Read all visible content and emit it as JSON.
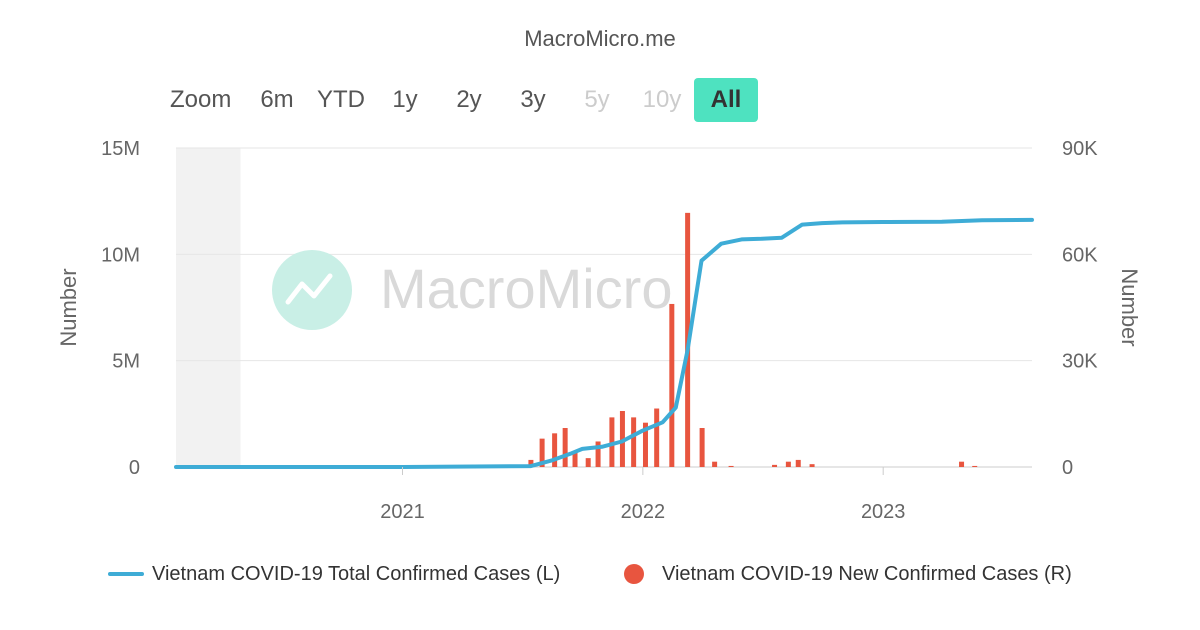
{
  "title": "MacroMicro.me",
  "watermark": "MacroMicro",
  "range_selector": {
    "zoom_label": "Zoom",
    "buttons": [
      {
        "label": "6m",
        "state": "enabled"
      },
      {
        "label": "YTD",
        "state": "enabled"
      },
      {
        "label": "1y",
        "state": "enabled"
      },
      {
        "label": "2y",
        "state": "enabled"
      },
      {
        "label": "3y",
        "state": "enabled"
      },
      {
        "label": "5y",
        "state": "disabled"
      },
      {
        "label": "10y",
        "state": "disabled"
      },
      {
        "label": "All",
        "state": "active"
      }
    ]
  },
  "colors": {
    "line": "#3eacd6",
    "bars": "#e8553f",
    "active_button": "#4ee2c0",
    "grid": "#e6e6e6",
    "shaded_band": "#f2f2f2",
    "watermark_logo": "#c9efe6"
  },
  "chart_data": {
    "type": "line+bar",
    "title": "",
    "left_axis": {
      "label": "Number",
      "range": [
        0,
        15000000
      ],
      "ticks": [
        0,
        5000000,
        10000000,
        15000000
      ],
      "tick_labels": [
        "0",
        "5M",
        "10M",
        "15M"
      ]
    },
    "right_axis": {
      "label": "Number",
      "range": [
        0,
        90000
      ],
      "ticks": [
        0,
        30000,
        60000,
        90000
      ],
      "tick_labels": [
        "0",
        "30K",
        "60K",
        "90K"
      ]
    },
    "x_axis": {
      "range": [
        "2020-01-23",
        "2023-08-15"
      ],
      "ticks": [
        "2021-01-01",
        "2022-01-01",
        "2023-01-01"
      ],
      "tick_labels": [
        "2021",
        "2022",
        "2023"
      ]
    },
    "shaded_period": [
      "2020-01-23",
      "2020-04-30"
    ],
    "grid": true,
    "legend_position": "bottom",
    "series": [
      {
        "name": "Vietnam COVID-19 Total Confirmed Cases (L)",
        "type": "line",
        "axis": "left",
        "points": [
          [
            "2020-01-23",
            0
          ],
          [
            "2021-01-01",
            2000
          ],
          [
            "2021-07-15",
            40000
          ],
          [
            "2021-08-15",
            300000
          ],
          [
            "2021-09-15",
            650000
          ],
          [
            "2021-10-01",
            850000
          ],
          [
            "2021-10-31",
            950000
          ],
          [
            "2021-11-30",
            1200000
          ],
          [
            "2021-12-31",
            1700000
          ],
          [
            "2022-01-31",
            2100000
          ],
          [
            "2022-02-20",
            2800000
          ],
          [
            "2022-03-10",
            5500000
          ],
          [
            "2022-03-31",
            9700000
          ],
          [
            "2022-04-30",
            10500000
          ],
          [
            "2022-05-31",
            10700000
          ],
          [
            "2022-06-30",
            10730000
          ],
          [
            "2022-07-31",
            10780000
          ],
          [
            "2022-08-31",
            11400000
          ],
          [
            "2022-09-30",
            11470000
          ],
          [
            "2022-10-31",
            11500000
          ],
          [
            "2022-12-31",
            11520000
          ],
          [
            "2023-03-31",
            11530000
          ],
          [
            "2023-05-31",
            11600000
          ],
          [
            "2023-08-15",
            11620000
          ]
        ]
      },
      {
        "name": "Vietnam COVID-19 New Confirmed Cases (R)",
        "type": "bar",
        "axis": "right",
        "points": [
          [
            "2021-07-15",
            2000
          ],
          [
            "2021-08-01",
            8000
          ],
          [
            "2021-08-20",
            9500
          ],
          [
            "2021-09-05",
            11000
          ],
          [
            "2021-09-20",
            4500
          ],
          [
            "2021-10-10",
            2500
          ],
          [
            "2021-10-25",
            7200
          ],
          [
            "2021-11-15",
            14000
          ],
          [
            "2021-12-01",
            15800
          ],
          [
            "2021-12-18",
            14000
          ],
          [
            "2022-01-05",
            12500
          ],
          [
            "2022-01-22",
            16500
          ],
          [
            "2022-02-14",
            46000
          ],
          [
            "2022-03-10",
            71700
          ],
          [
            "2022-04-01",
            11000
          ],
          [
            "2022-04-20",
            1500
          ],
          [
            "2022-05-15",
            300
          ],
          [
            "2022-07-20",
            600
          ],
          [
            "2022-08-10",
            1500
          ],
          [
            "2022-08-25",
            2000
          ],
          [
            "2022-09-15",
            800
          ],
          [
            "2023-04-30",
            1500
          ],
          [
            "2023-05-20",
            300
          ]
        ]
      }
    ]
  }
}
